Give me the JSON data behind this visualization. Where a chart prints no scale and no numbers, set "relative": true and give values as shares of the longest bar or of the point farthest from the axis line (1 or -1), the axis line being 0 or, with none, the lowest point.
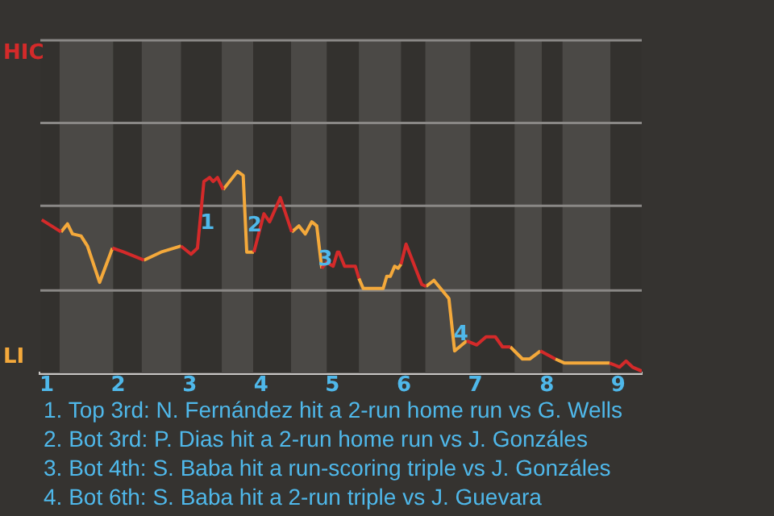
{
  "chart_data": {
    "type": "line",
    "relative": true,
    "xlim": [
      0.91,
      9.33
    ],
    "xticks": [
      1,
      2,
      3,
      4,
      5,
      6,
      7,
      8,
      9
    ],
    "legend": false,
    "ref_lines": [
      {
        "axis": "y",
        "value": 0.41,
        "color": "#8a8886"
      },
      {
        "axis": "y",
        "value": 0.83,
        "color": "#8a8886"
      },
      {
        "axis": "y",
        "value": 1.24,
        "color": "#8a8886"
      },
      {
        "axis": "y",
        "value": 1.65,
        "color": "#8a8886"
      }
    ],
    "bands": [
      {
        "axis": "x",
        "from": 1.18,
        "to": 1.93,
        "color": "#4b4946"
      },
      {
        "axis": "x",
        "from": 2.33,
        "to": 2.88,
        "color": "#4b4946"
      },
      {
        "axis": "x",
        "from": 3.45,
        "to": 3.89,
        "color": "#4b4946"
      },
      {
        "axis": "x",
        "from": 4.42,
        "to": 4.92,
        "color": "#4b4946"
      },
      {
        "axis": "x",
        "from": 5.37,
        "to": 5.96,
        "color": "#4b4946"
      },
      {
        "axis": "x",
        "from": 6.3,
        "to": 6.93,
        "color": "#4b4946"
      },
      {
        "axis": "x",
        "from": 7.55,
        "to": 7.93,
        "color": "#4b4946"
      },
      {
        "axis": "x",
        "from": 8.22,
        "to": 8.89,
        "color": "#4b4946"
      }
    ],
    "series": [
      {
        "name": "HIC",
        "color": "#d42a2a",
        "x": [
          0.93,
          1.2,
          null,
          1.92,
          2.08,
          2.36,
          null,
          2.88,
          3.02,
          3.11,
          3.2,
          3.28,
          3.33,
          3.39,
          3.47,
          null,
          3.9,
          4.04,
          4.12,
          4.27,
          4.43,
          null,
          4.85,
          4.92,
          5.01,
          5.07,
          5.09,
          5.17,
          5.32,
          5.37,
          null,
          5.96,
          6.03,
          6.25,
          6.31,
          null,
          6.88,
          7.02,
          7.15,
          7.28,
          7.38,
          7.49,
          null,
          7.91,
          8.12,
          null,
          8.88,
          9.02,
          9.11,
          9.2,
          9.33
        ],
        "values": [
          0.76,
          0.7,
          null,
          0.62,
          0.6,
          0.56,
          null,
          0.63,
          0.59,
          0.62,
          0.95,
          0.97,
          0.95,
          0.97,
          0.91,
          null,
          0.6,
          0.79,
          0.75,
          0.87,
          0.7,
          null,
          0.52,
          0.55,
          0.53,
          0.6,
          0.6,
          0.53,
          0.53,
          0.47,
          null,
          0.54,
          0.64,
          0.44,
          0.43,
          null,
          0.16,
          0.14,
          0.18,
          0.18,
          0.13,
          0.13,
          null,
          0.11,
          0.07,
          null,
          0.05,
          0.03,
          0.06,
          0.03,
          0.01
        ]
      },
      {
        "name": "LI",
        "color": "#f4a93b",
        "x": [
          1.2,
          1.29,
          1.36,
          1.48,
          1.57,
          1.74,
          1.92,
          null,
          2.36,
          2.6,
          2.88,
          null,
          3.47,
          3.67,
          3.75,
          3.8,
          3.9,
          null,
          4.43,
          4.53,
          4.62,
          4.71,
          4.78,
          4.85,
          null,
          5.37,
          5.43,
          5.71,
          5.76,
          5.81,
          5.87,
          5.92,
          5.96,
          null,
          6.31,
          6.42,
          6.63,
          6.71,
          6.88,
          null,
          7.49,
          7.66,
          7.76,
          7.91,
          null,
          8.12,
          8.25,
          8.48,
          8.88
        ],
        "values": [
          0.7,
          0.74,
          0.69,
          0.68,
          0.63,
          0.45,
          0.62,
          null,
          0.56,
          0.6,
          0.63,
          null,
          0.91,
          1,
          0.98,
          0.6,
          0.6,
          null,
          0.7,
          0.73,
          0.69,
          0.75,
          0.73,
          0.52,
          null,
          0.47,
          0.42,
          0.42,
          0.48,
          0.48,
          0.53,
          0.52,
          0.54,
          null,
          0.43,
          0.46,
          0.37,
          0.11,
          0.16,
          null,
          0.13,
          0.07,
          0.07,
          0.11,
          null,
          0.07,
          0.05,
          0.05,
          0.05
        ]
      }
    ],
    "annotations": [
      {
        "text": "1",
        "x": 3.25,
        "y": 0.74
      },
      {
        "text": "2",
        "x": 3.91,
        "y": 0.73
      },
      {
        "text": "3",
        "x": 4.9,
        "y": 0.56
      },
      {
        "text": "4",
        "x": 6.8,
        "y": 0.19
      },
      "1. Top 3rd: N. Fernández hit a 2-run home run vs G. Wells",
      "2. Bot 3rd: P. Dias hit a 2-run home run vs J. Gonzáles",
      "3. Bot 4th: S. Baba hit a run-scoring triple vs J. Gonzáles",
      "4. Bot 6th: S. Baba hit a 2-run triple vs J. Guevara"
    ]
  }
}
